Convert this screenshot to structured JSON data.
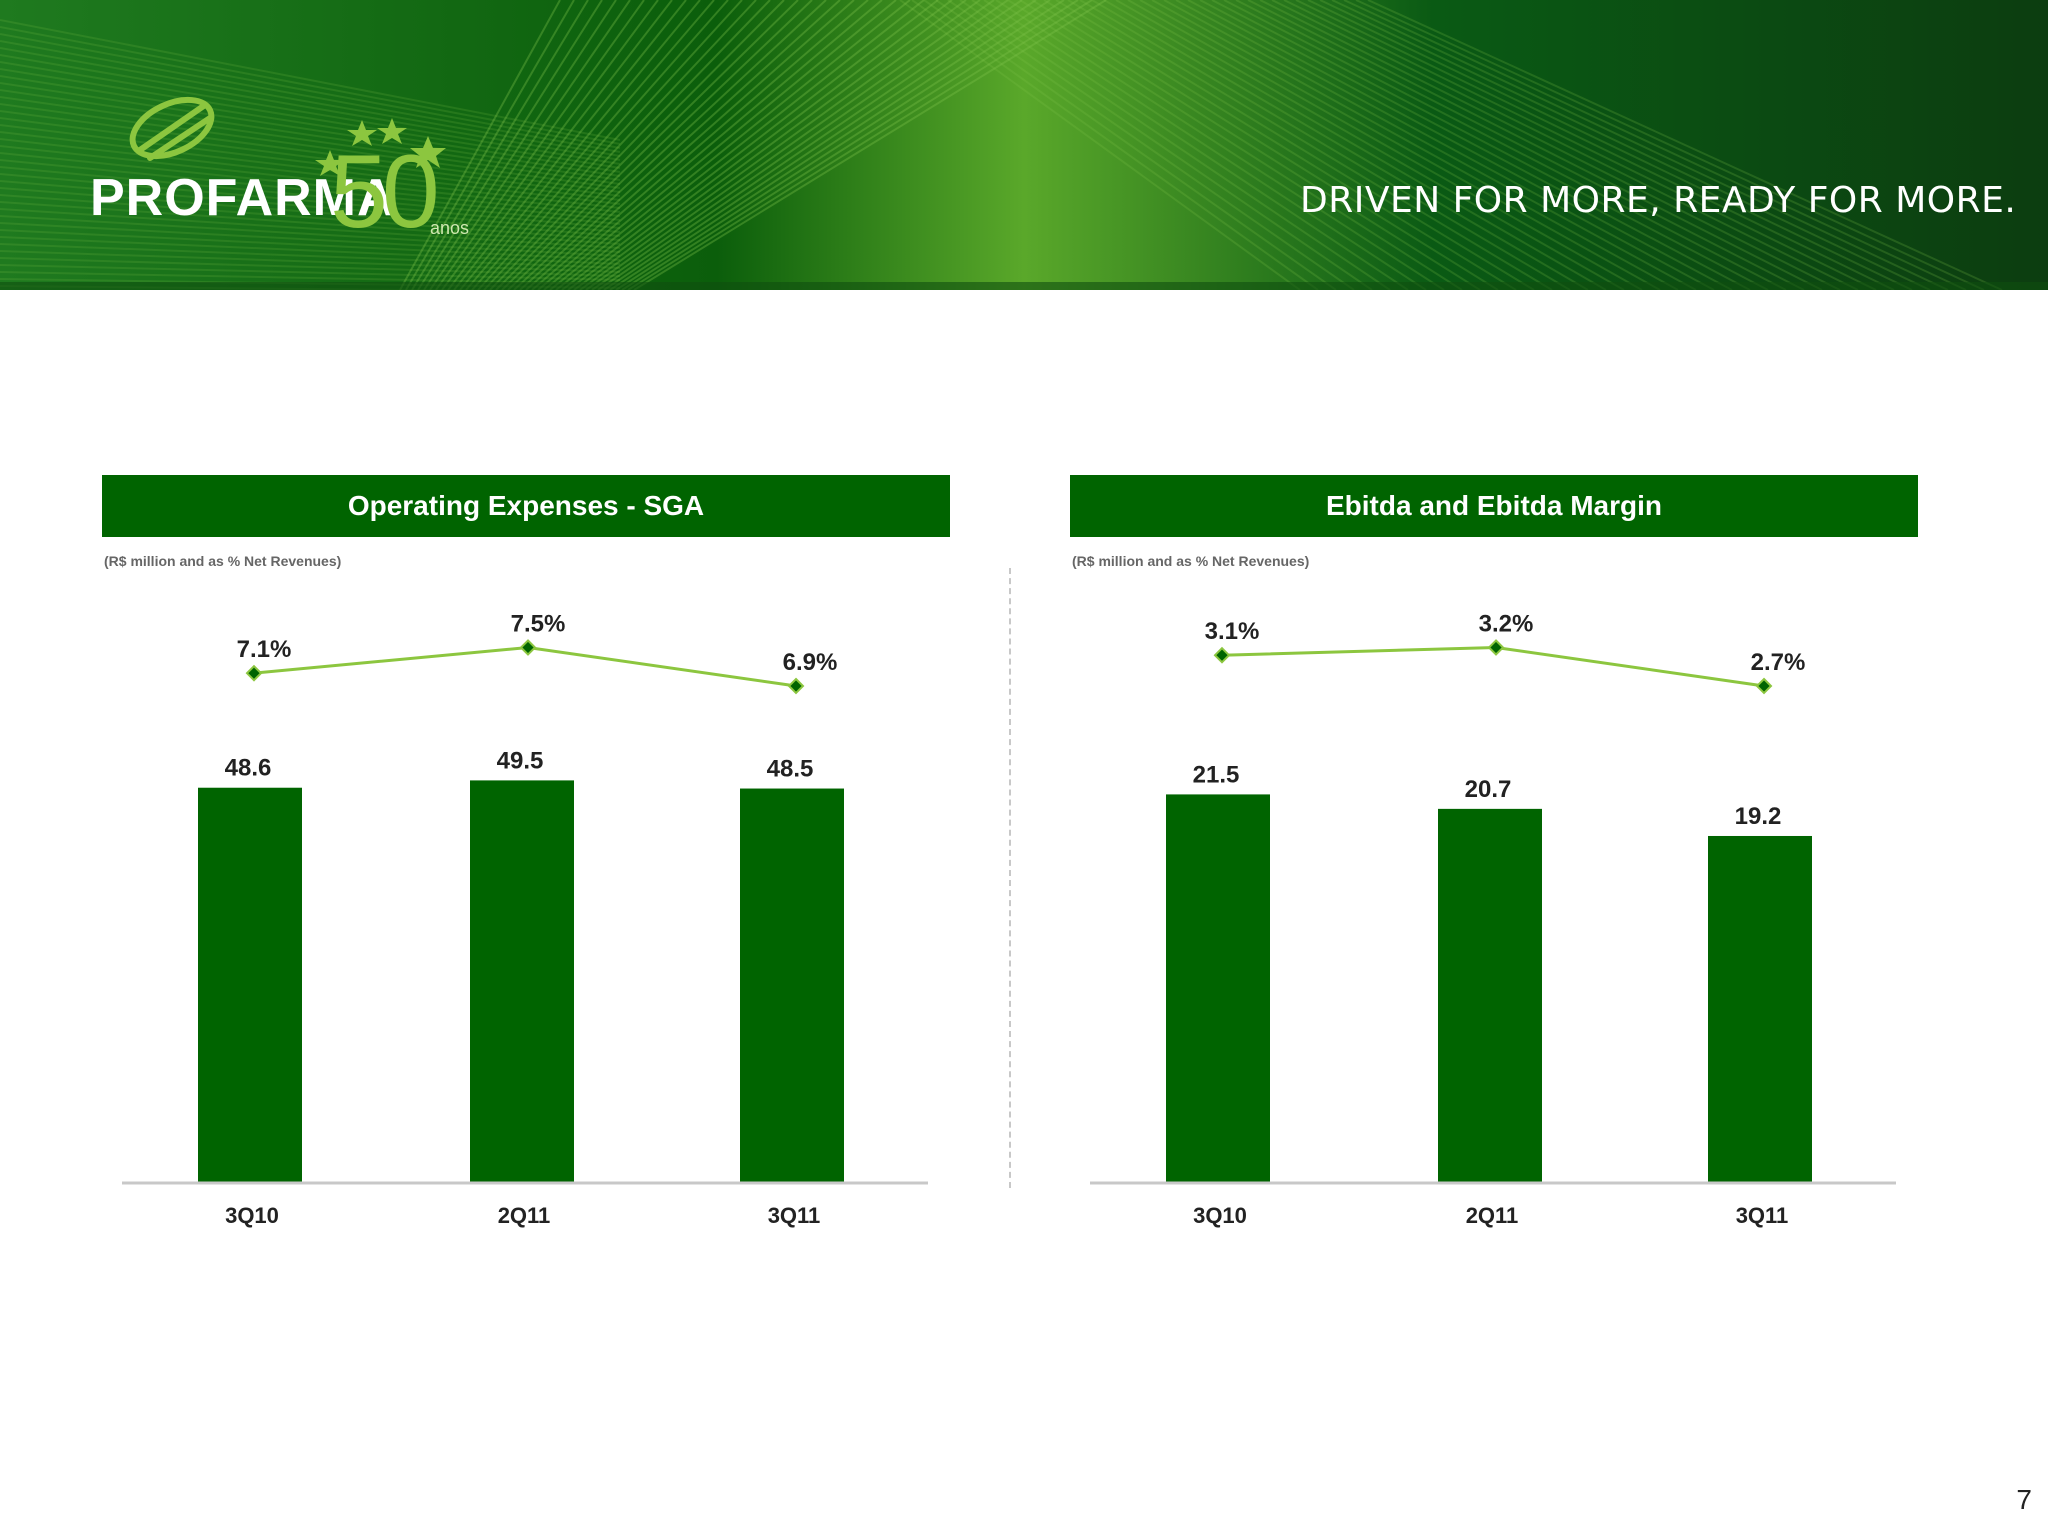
{
  "header": {
    "logo_name": "PROFARMA",
    "logo_fifty": "50",
    "logo_anos": "anos",
    "tagline": "DRIVEN FOR MORE, READY FOR MORE."
  },
  "page_number": "7",
  "colors": {
    "bar": "#006400",
    "line": "#8cc63f",
    "marker": "#006400",
    "header_bg": "#006400",
    "axis": "#c8c8c8"
  },
  "chart_data": [
    {
      "type": "bar",
      "title": "Operating Expenses - SGA",
      "subtitle": "(R$ million and as % Net Revenues)",
      "categories": [
        "3Q10",
        "2Q11",
        "3Q11"
      ],
      "values": [
        48.6,
        49.5,
        48.5
      ],
      "value_labels": [
        "48.6",
        "49.5",
        "48.5"
      ],
      "line_series": {
        "values": [
          7.1,
          7.5,
          6.9
        ],
        "labels": [
          "7.1%",
          "7.5%",
          "6.9%"
        ]
      },
      "ylim": [
        0,
        60
      ],
      "grid": false,
      "legend": "none"
    },
    {
      "type": "bar",
      "title": "Ebitda and Ebitda Margin",
      "subtitle": "(R$ million and as % Net Revenues)",
      "categories": [
        "3Q10",
        "2Q11",
        "3Q11"
      ],
      "values": [
        21.5,
        20.7,
        19.2
      ],
      "value_labels": [
        "21.5",
        "20.7",
        "19.2"
      ],
      "line_series": {
        "values": [
          3.1,
          3.2,
          2.7
        ],
        "labels": [
          "3.1%",
          "3.2%",
          "2.7%"
        ]
      },
      "ylim": [
        0,
        27
      ],
      "grid": false,
      "legend": "none"
    }
  ]
}
